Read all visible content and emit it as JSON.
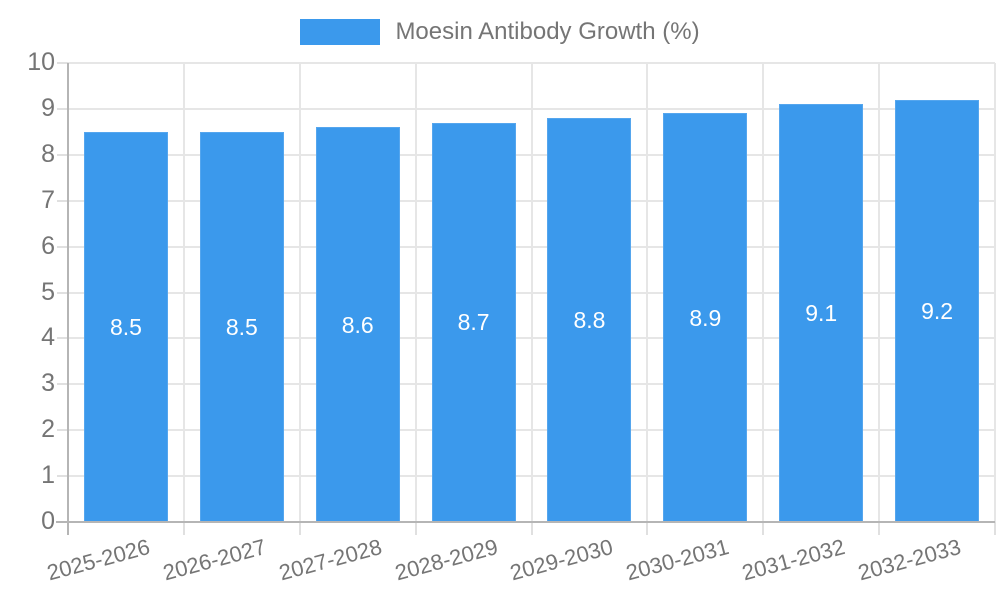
{
  "legend": {
    "label": "Moesin Antibody Growth (%)"
  },
  "colors": {
    "bar": "#3b99ec",
    "bar_border": "#55a6ee",
    "axis_text": "#757575",
    "gridline": "#e6e6e6",
    "axis_line": "#b5b5b5",
    "bar_label_text": "#ffffff",
    "background": "#ffffff"
  },
  "chart_data": {
    "type": "bar",
    "title": "Moesin Antibody Growth (%)",
    "categories": [
      "2025-2026",
      "2026-2027",
      "2027-2028",
      "2028-2029",
      "2029-2030",
      "2030-2031",
      "2031-2032",
      "2032-2033"
    ],
    "values": [
      8.5,
      8.5,
      8.6,
      8.7,
      8.8,
      8.9,
      9.1,
      9.2
    ],
    "bar_labels": [
      "8.5",
      "8.5",
      "8.6",
      "8.7",
      "8.8",
      "8.9",
      "9.1",
      "9.2"
    ],
    "xlabel": "",
    "ylabel": "",
    "ylim": [
      0,
      10
    ],
    "yticks": [
      0,
      1,
      2,
      3,
      4,
      5,
      6,
      7,
      8,
      9,
      10
    ],
    "grid": true,
    "legend_position": "top",
    "xtick_rotation_deg": -15,
    "bar_label_position": "center"
  }
}
